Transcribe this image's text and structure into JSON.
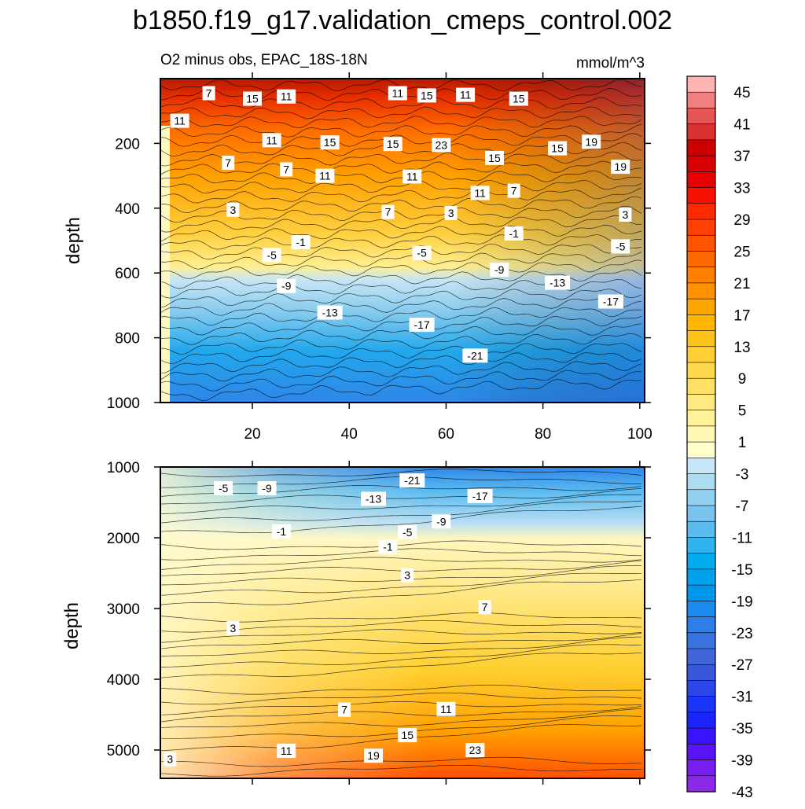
{
  "chart_data": [
    {
      "type": "contour",
      "main_title": "b1850.f19_g17.validation_cmeps_control.002",
      "subtitle_left": "O2 minus obs, EPAC_18S-18N",
      "subtitle_right": "mmol/m^3",
      "xlabel": "",
      "ylabel": "depth",
      "xlim": [
        1,
        101
      ],
      "ylim": [
        1000,
        0
      ],
      "xticks": [
        20,
        40,
        60,
        80,
        100
      ],
      "yticks": [
        200,
        400,
        600,
        800,
        1000
      ],
      "contour_labels": [
        {
          "text": "7",
          "x": 11,
          "y": 45
        },
        {
          "text": "15",
          "x": 20,
          "y": 62
        },
        {
          "text": "11",
          "x": 27,
          "y": 55
        },
        {
          "text": "11",
          "x": 50,
          "y": 45
        },
        {
          "text": "15",
          "x": 56,
          "y": 52
        },
        {
          "text": "11",
          "x": 64,
          "y": 50
        },
        {
          "text": "15",
          "x": 75,
          "y": 62
        },
        {
          "text": "11",
          "x": 5,
          "y": 130
        },
        {
          "text": "11",
          "x": 24,
          "y": 190
        },
        {
          "text": "15",
          "x": 36,
          "y": 197
        },
        {
          "text": "15",
          "x": 49,
          "y": 202
        },
        {
          "text": "23",
          "x": 59,
          "y": 205
        },
        {
          "text": "15",
          "x": 70,
          "y": 245
        },
        {
          "text": "15",
          "x": 83,
          "y": 215
        },
        {
          "text": "19",
          "x": 90,
          "y": 195
        },
        {
          "text": "19",
          "x": 96,
          "y": 272
        },
        {
          "text": "7",
          "x": 15,
          "y": 260
        },
        {
          "text": "7",
          "x": 27,
          "y": 280
        },
        {
          "text": "11",
          "x": 35,
          "y": 300
        },
        {
          "text": "11",
          "x": 53,
          "y": 302
        },
        {
          "text": "11",
          "x": 67,
          "y": 353
        },
        {
          "text": "7",
          "x": 74,
          "y": 346
        },
        {
          "text": "3",
          "x": 16,
          "y": 405
        },
        {
          "text": "7",
          "x": 48,
          "y": 412
        },
        {
          "text": "3",
          "x": 61,
          "y": 415
        },
        {
          "text": "3",
          "x": 97,
          "y": 420
        },
        {
          "text": "-1",
          "x": 30,
          "y": 505
        },
        {
          "text": "-1",
          "x": 74,
          "y": 478
        },
        {
          "text": "-5",
          "x": 24,
          "y": 545
        },
        {
          "text": "-5",
          "x": 55,
          "y": 538
        },
        {
          "text": "-5",
          "x": 96,
          "y": 518
        },
        {
          "text": "-9",
          "x": 27,
          "y": 640
        },
        {
          "text": "-9",
          "x": 71,
          "y": 590
        },
        {
          "text": "-13",
          "x": 36,
          "y": 722
        },
        {
          "text": "-13",
          "x": 83,
          "y": 630
        },
        {
          "text": "-17",
          "x": 55,
          "y": 760
        },
        {
          "text": "-17",
          "x": 94,
          "y": 688
        },
        {
          "text": "-21",
          "x": 66,
          "y": 855
        }
      ]
    },
    {
      "type": "contour",
      "xlabel": "",
      "ylabel": "depth",
      "xlim": [
        1,
        101
      ],
      "ylim": [
        5400,
        1000
      ],
      "xticks": [
        20,
        40,
        60,
        80,
        100
      ],
      "yticks": [
        1000,
        2000,
        3000,
        4000,
        5000
      ],
      "contour_labels": [
        {
          "text": "-5",
          "x": 14,
          "y": 1300
        },
        {
          "text": "-9",
          "x": 23,
          "y": 1300
        },
        {
          "text": "-21",
          "x": 53,
          "y": 1190
        },
        {
          "text": "-13",
          "x": 45,
          "y": 1450
        },
        {
          "text": "-17",
          "x": 67,
          "y": 1410
        },
        {
          "text": "-9",
          "x": 59,
          "y": 1770
        },
        {
          "text": "-5",
          "x": 52,
          "y": 1920
        },
        {
          "text": "-1",
          "x": 26,
          "y": 1910
        },
        {
          "text": "-1",
          "x": 48,
          "y": 2130
        },
        {
          "text": "3",
          "x": 52,
          "y": 2530
        },
        {
          "text": "7",
          "x": 68,
          "y": 2980
        },
        {
          "text": "3",
          "x": 16,
          "y": 3280
        },
        {
          "text": "7",
          "x": 39,
          "y": 4430
        },
        {
          "text": "11",
          "x": 60,
          "y": 4420
        },
        {
          "text": "15",
          "x": 52,
          "y": 4790
        },
        {
          "text": "11",
          "x": 27,
          "y": 5010
        },
        {
          "text": "19",
          "x": 45,
          "y": 5080
        },
        {
          "text": "23",
          "x": 66,
          "y": 5000
        },
        {
          "text": "3",
          "x": 3,
          "y": 5130
        }
      ]
    }
  ],
  "colorbar": {
    "labels": [
      "45",
      "41",
      "37",
      "33",
      "29",
      "25",
      "21",
      "17",
      "13",
      "9",
      "5",
      "1",
      "-3",
      "-7",
      "-11",
      "-15",
      "-19",
      "-23",
      "-27",
      "-31",
      "-35",
      "-39",
      "-43"
    ],
    "colors": [
      "#ffb3b3",
      "#f08080",
      "#e65555",
      "#d93030",
      "#cc0000",
      "#d80000",
      "#e80000",
      "#f51000",
      "#ff2a00",
      "#ff4000",
      "#ff5500",
      "#ff6a00",
      "#ff8000",
      "#ff9200",
      "#ffa500",
      "#ffb400",
      "#ffc21a",
      "#ffcf33",
      "#ffd84d",
      "#ffe066",
      "#ffe980",
      "#fff299",
      "#fff7b3",
      "#ffffcc",
      "#c7e6f5",
      "#addcf2",
      "#92d0f0",
      "#78c4ee",
      "#5cbcf0",
      "#30b4f0",
      "#00acec",
      "#00a2ee",
      "#0096ee",
      "#1a8aec",
      "#2e7ee8",
      "#3a72e0",
      "#4066d8",
      "#3a56d8",
      "#2a46e8",
      "#1a36f8",
      "#1a24ff",
      "#3a14ff",
      "#5a14f8",
      "#7a1ef0",
      "#8c28ea"
    ]
  }
}
